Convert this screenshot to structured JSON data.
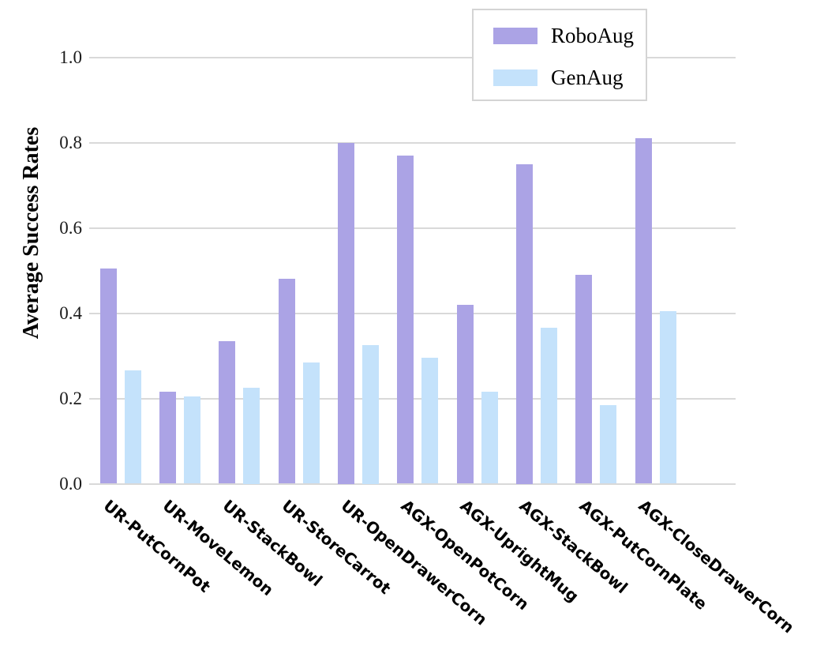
{
  "chart_data": {
    "type": "bar",
    "title": "",
    "xlabel": "",
    "ylabel": "Average Success Rates",
    "ylim": [
      0.0,
      1.0
    ],
    "yticks": [
      "0.0",
      "0.2",
      "0.4",
      "0.6",
      "0.8",
      "1.0"
    ],
    "grid": "horizontal",
    "gridline_color": "#d9d9d9",
    "legend_position": "upper center-right, framed box",
    "categories": [
      "UR-PutCornPot",
      "UR-MoveLemon",
      "UR-StackBowl",
      "UR-StoreCarrot",
      "UR-OpenDrawerCorn",
      "AGX-OpenPotCorn",
      "AGX-UprightMug",
      "AGX-StackBowl",
      "AGX-PutCornPlate",
      "AGX-CloseDrawerCorn"
    ],
    "series": [
      {
        "name": "RoboAug",
        "color": "#aba3e5",
        "values": [
          0.505,
          0.215,
          0.335,
          0.48,
          0.8,
          0.77,
          0.42,
          0.75,
          0.49,
          0.81
        ]
      },
      {
        "name": "GenAug",
        "color": "#c4e2fb",
        "values": [
          0.265,
          0.205,
          0.225,
          0.285,
          0.325,
          0.295,
          0.215,
          0.365,
          0.185,
          0.405
        ]
      }
    ]
  }
}
